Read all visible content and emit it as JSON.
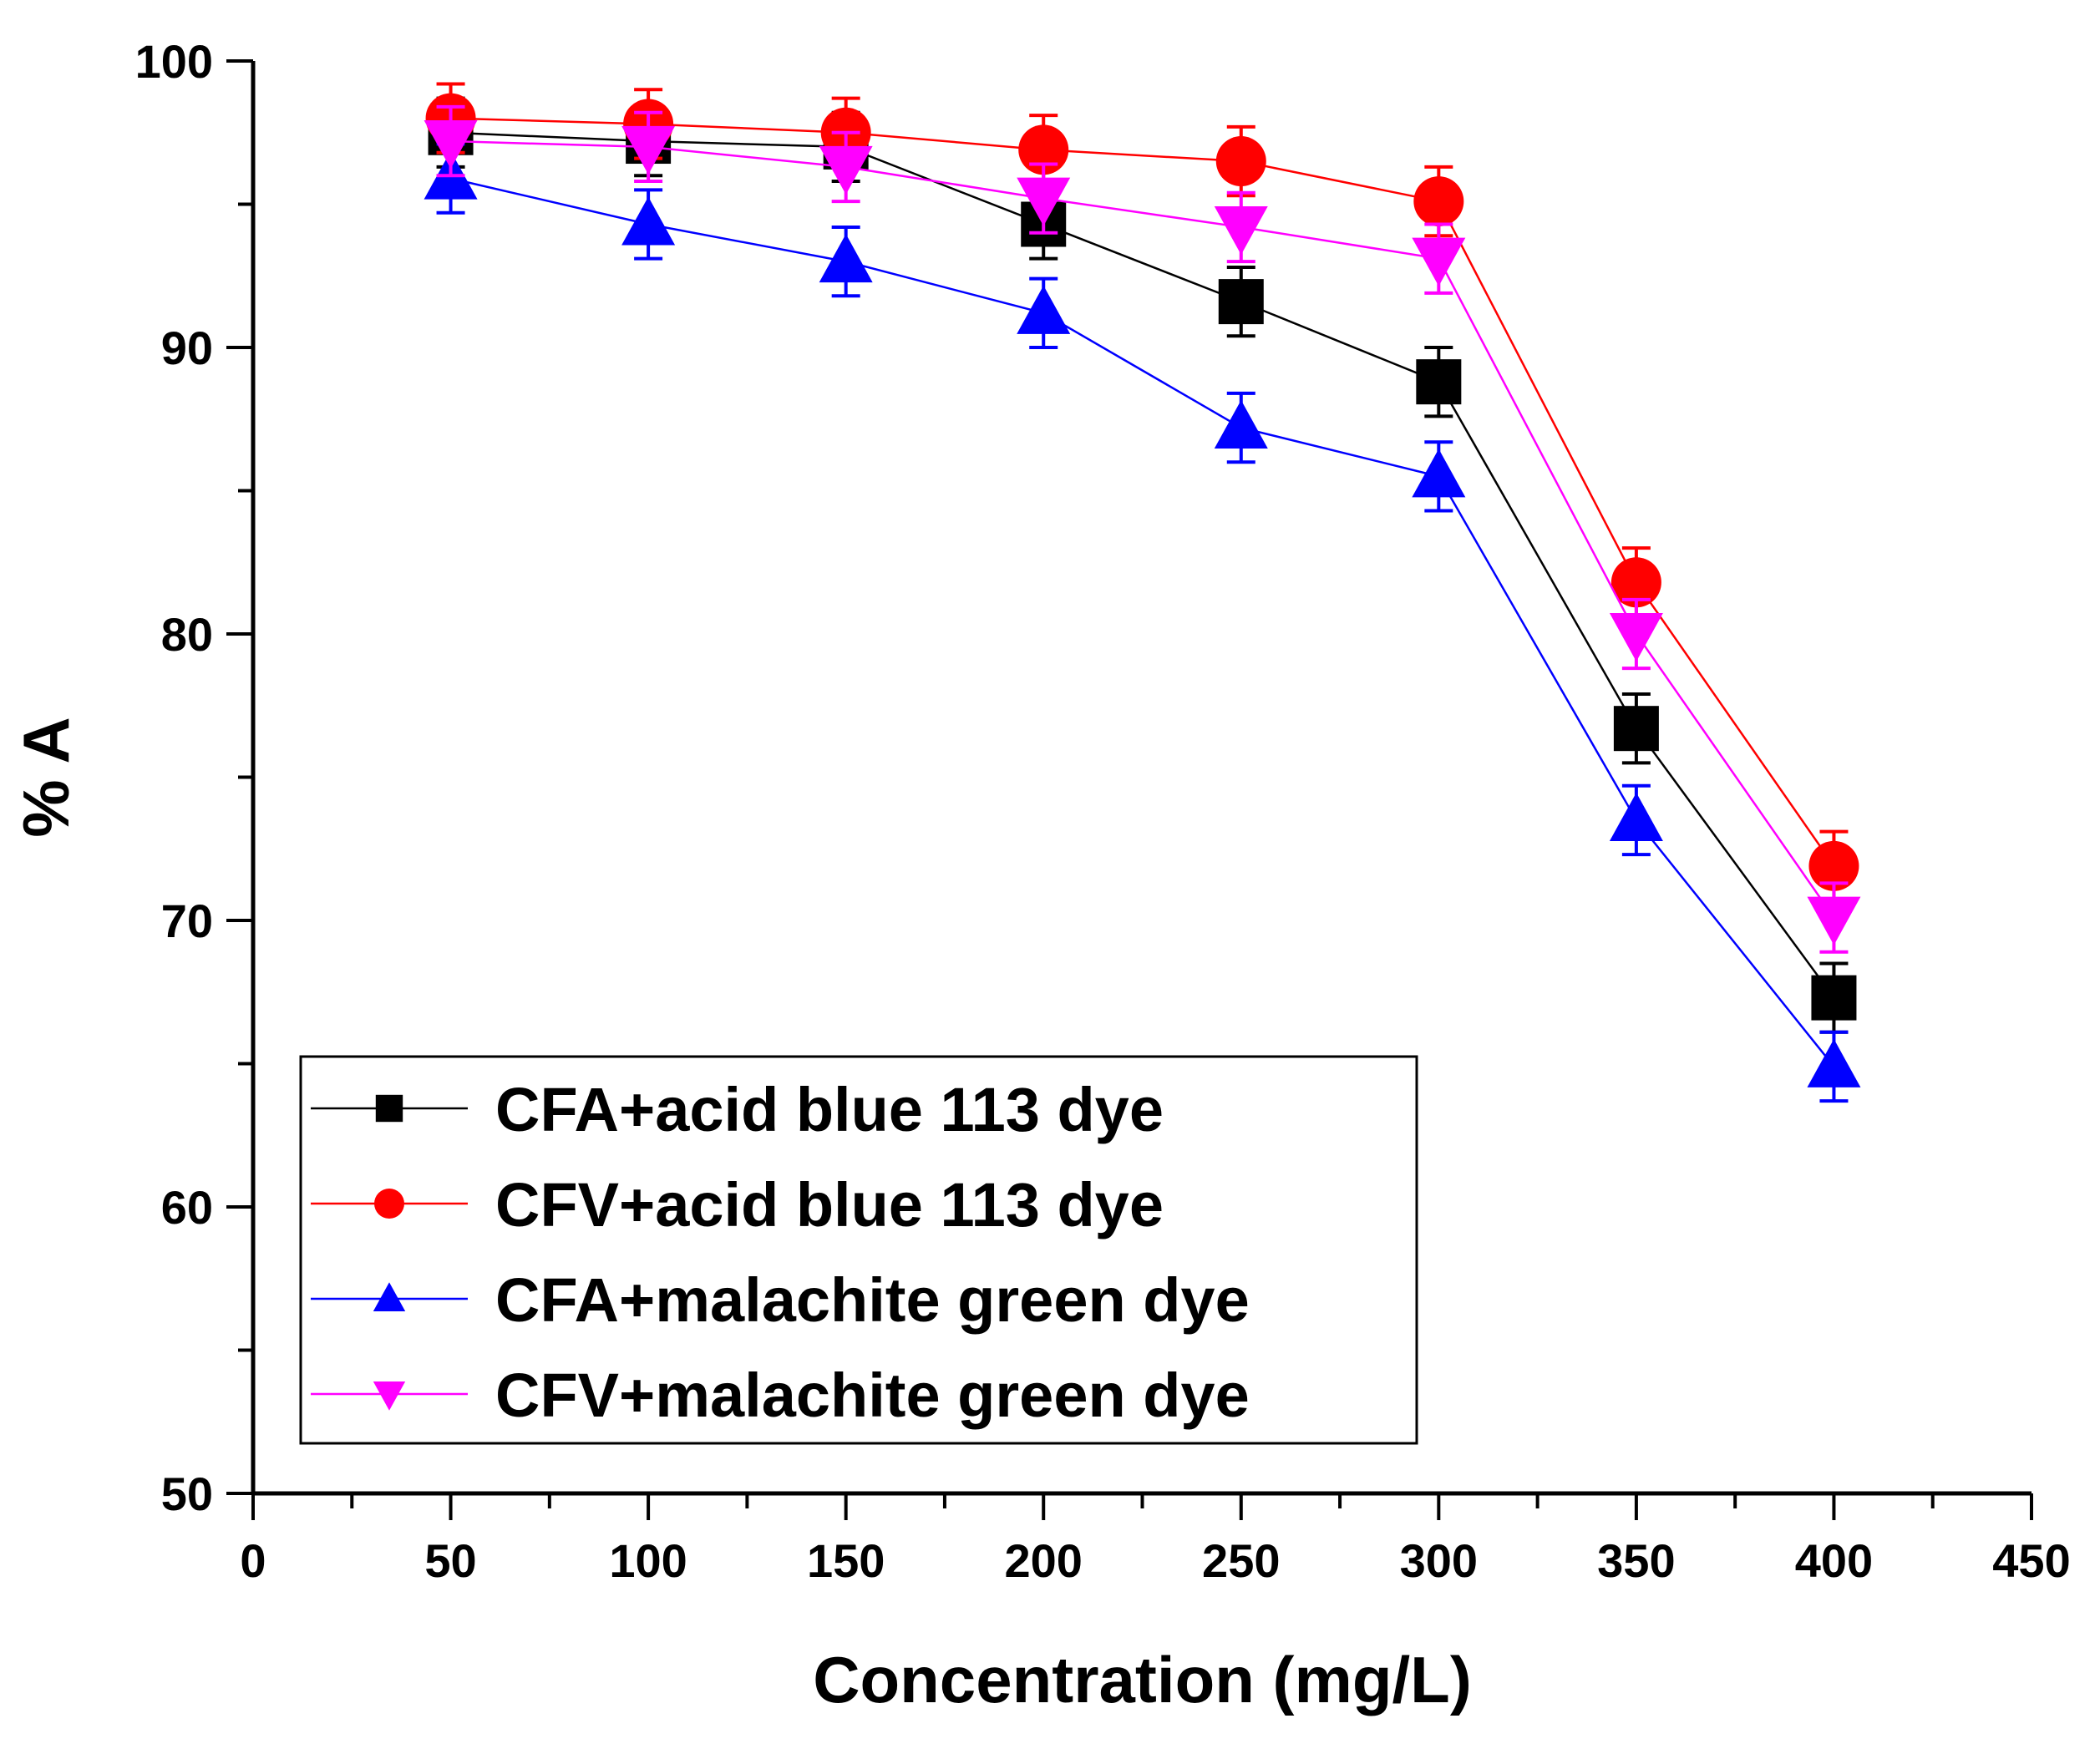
{
  "chart_data": {
    "type": "line",
    "title": "",
    "xlabel": "Concentration (mg/L)",
    "ylabel": "% A",
    "xlim": [
      0,
      450
    ],
    "ylim": [
      50,
      100
    ],
    "x_ticks": [
      0,
      50,
      100,
      150,
      200,
      250,
      300,
      350,
      400,
      450
    ],
    "x_tick_labels": [
      "0",
      "50",
      "100",
      "150",
      "200",
      "250",
      "300",
      "350",
      "400",
      "450"
    ],
    "x_minor_step": 25,
    "y_ticks": [
      50,
      60,
      70,
      80,
      90,
      100
    ],
    "y_tick_labels": [
      "50",
      "60",
      "70",
      "80",
      "90",
      "100"
    ],
    "y_minor_step": 5,
    "grid": false,
    "legend_position": "bottom-left",
    "x": [
      50,
      100,
      150,
      200,
      250,
      300,
      350,
      400
    ],
    "series": [
      {
        "name": "CFA+acid blue 113 dye",
        "color": "#000000",
        "marker": "square",
        "values": [
          97.5,
          97.2,
          97.0,
          94.3,
          91.6,
          88.8,
          76.7,
          67.3
        ],
        "error": [
          1.2,
          1.2,
          1.2,
          1.2,
          1.2,
          1.2,
          1.2,
          1.2
        ]
      },
      {
        "name": "CFV+acid blue 113 dye",
        "color": "#ff0000",
        "marker": "circle",
        "values": [
          98.0,
          97.8,
          97.5,
          96.9,
          96.5,
          95.1,
          81.8,
          71.9
        ],
        "error": [
          1.2,
          1.2,
          1.2,
          1.2,
          1.2,
          1.2,
          1.2,
          1.2
        ]
      },
      {
        "name": "CFA+malachite green dye",
        "color": "#0000ff",
        "marker": "triangle-up",
        "values": [
          95.9,
          94.3,
          93.0,
          91.2,
          87.2,
          85.5,
          73.5,
          64.9
        ],
        "error": [
          1.2,
          1.2,
          1.2,
          1.2,
          1.2,
          1.2,
          1.2,
          1.2
        ]
      },
      {
        "name": "CFV+malachite green dye",
        "color": "#ff00ff",
        "marker": "triangle-down",
        "values": [
          97.2,
          97.0,
          96.3,
          95.2,
          94.2,
          93.1,
          80.0,
          70.1
        ],
        "error": [
          1.2,
          1.2,
          1.2,
          1.2,
          1.2,
          1.2,
          1.2,
          1.2
        ]
      }
    ]
  }
}
